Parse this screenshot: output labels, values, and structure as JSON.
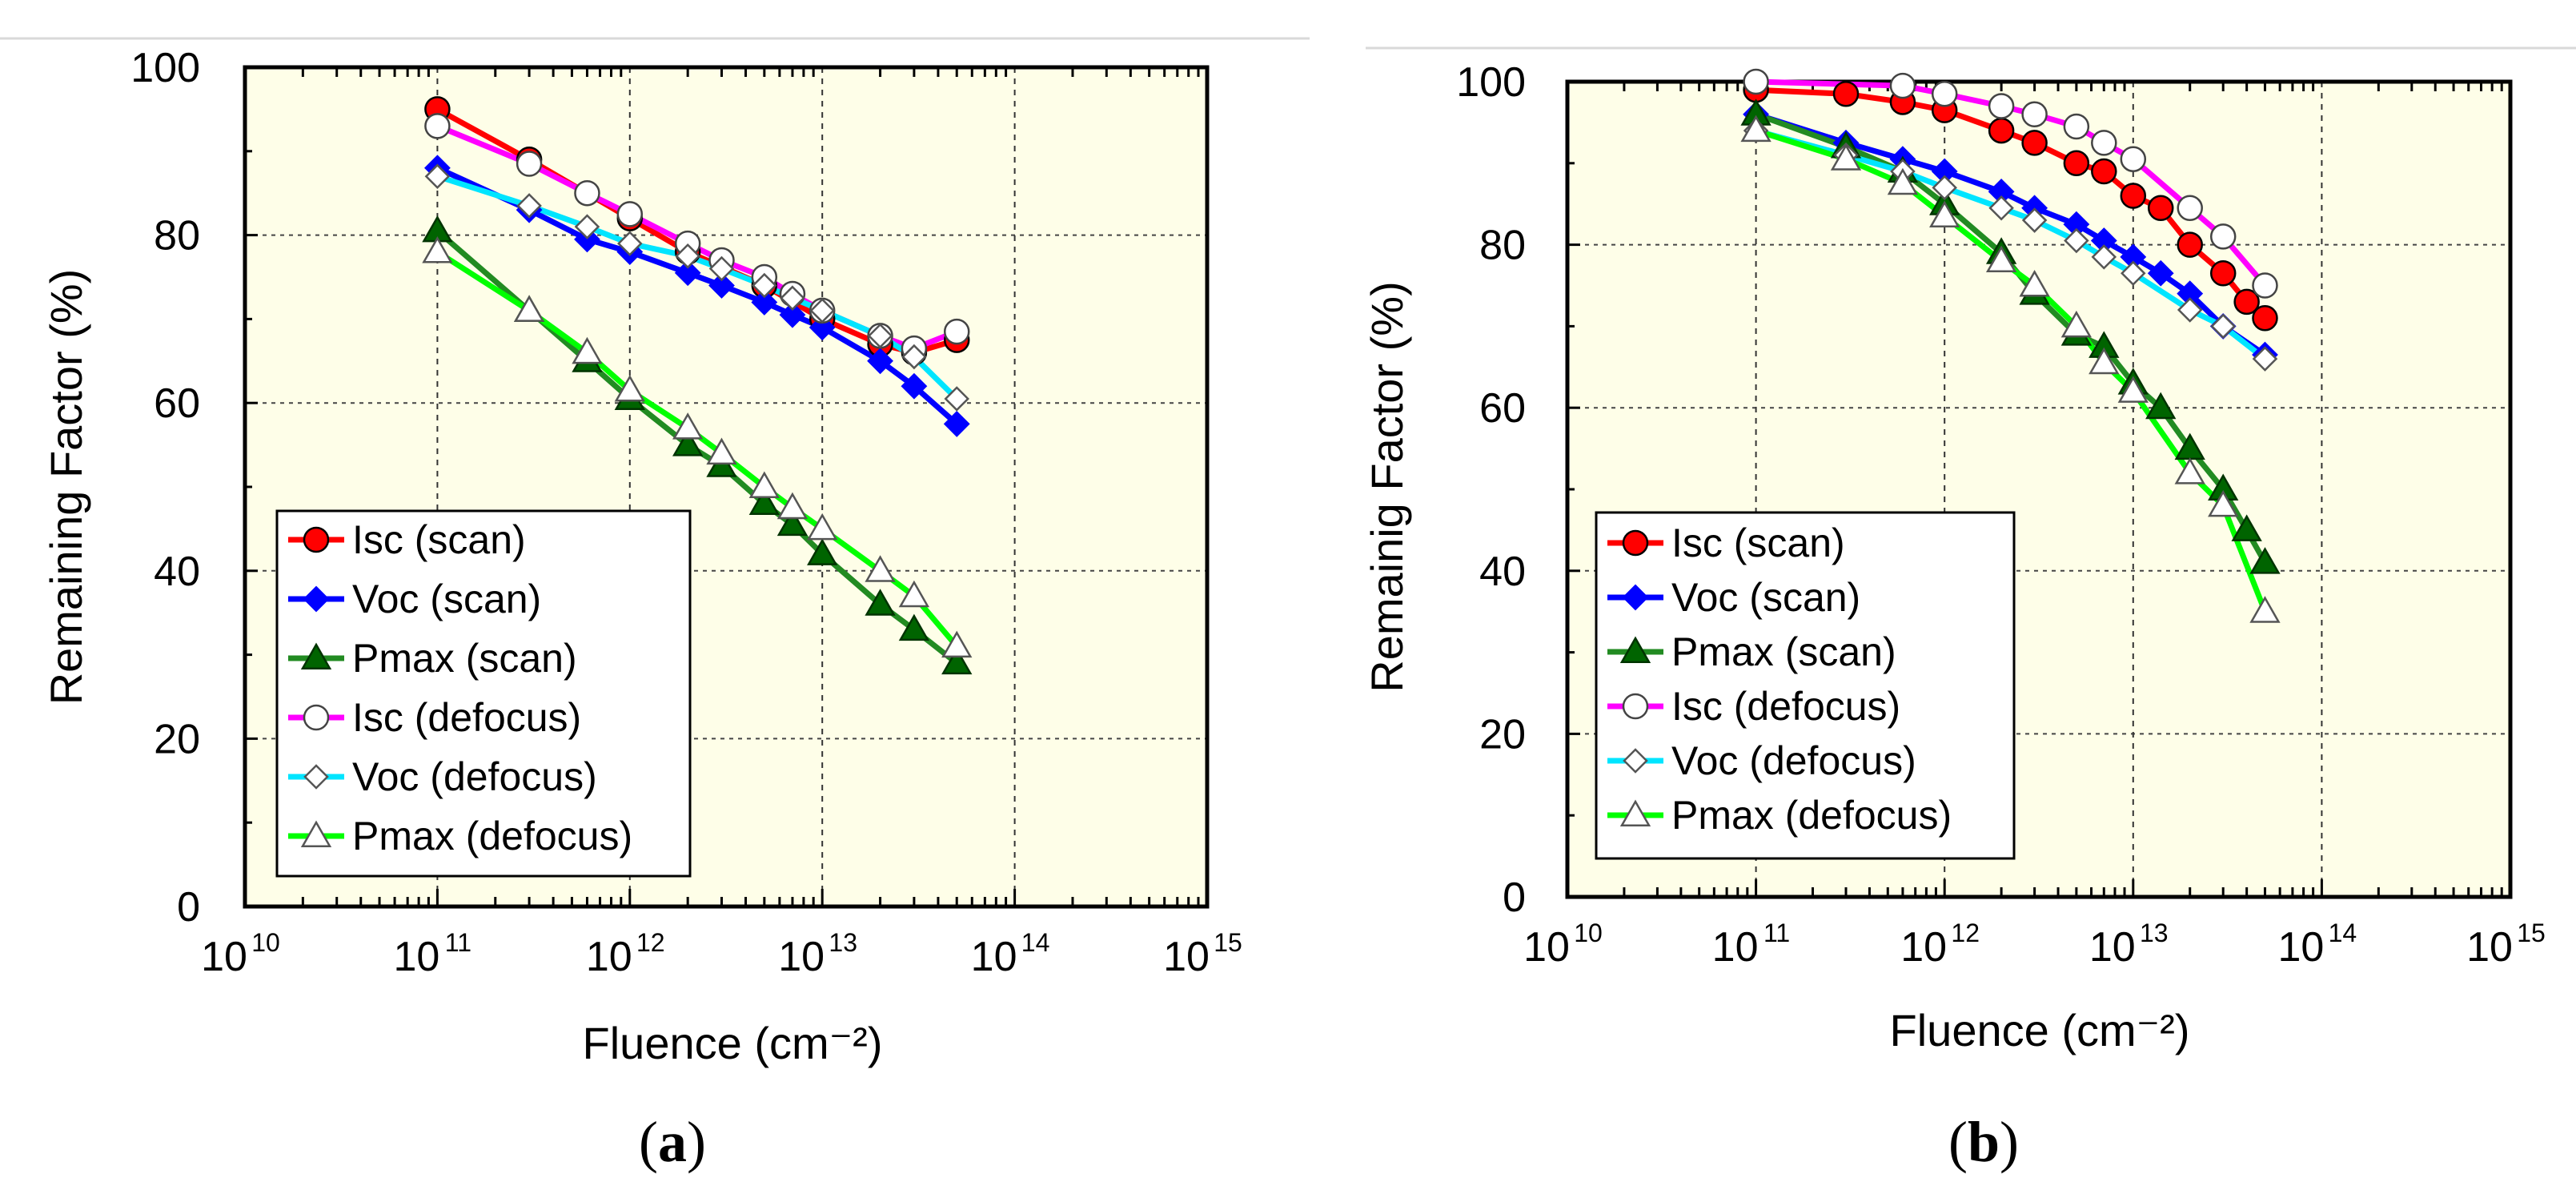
{
  "figure": {
    "panel_labels": [
      "(a)",
      "(b)"
    ]
  },
  "chart_data": [
    {
      "type": "line",
      "panel": "(a)",
      "xlabel": "Fluence (cm⁻²)",
      "ylabel": "Remaining Factor (%)",
      "xscale": "log",
      "xlim": [
        10000000000.0,
        1000000000000000.0
      ],
      "ylim": [
        0,
        100
      ],
      "x_ticks": [
        "10",
        "10",
        "10",
        "10",
        "10",
        "10"
      ],
      "x_tick_exponents": [
        "10",
        "11",
        "12",
        "13",
        "14",
        "15"
      ],
      "y_ticks": [
        "0",
        "20",
        "40",
        "60",
        "80",
        "100"
      ],
      "grid": true,
      "legend_position": "lower-left",
      "series": [
        {
          "name": "Isc (scan)",
          "color": "#ff0000",
          "marker": "circle",
          "filled": true,
          "x": [
            100000000000.0,
            300000000000.0,
            1000000000000.0,
            2000000000000.0,
            5000000000000.0,
            10000000000000.0,
            20000000000000.0,
            30000000000000.0,
            50000000000000.0
          ],
          "y": [
            95,
            89,
            82,
            78,
            74,
            70,
            67,
            66,
            67.5
          ]
        },
        {
          "name": "Voc (scan)",
          "color": "#0000ff",
          "marker": "diamond",
          "filled": true,
          "x": [
            100000000000.0,
            300000000000.0,
            600000000000.0,
            1000000000000.0,
            2000000000000.0,
            3000000000000.0,
            5000000000000.0,
            7000000000000.0,
            10000000000000.0,
            20000000000000.0,
            30000000000000.0,
            50000000000000.0
          ],
          "y": [
            88,
            83,
            79.5,
            78,
            75.5,
            74,
            72,
            70.5,
            69,
            65,
            62,
            57.5
          ]
        },
        {
          "name": "Pmax (scan)",
          "color": "#006400",
          "line_color": "#228b22",
          "marker": "triangle",
          "filled": true,
          "x": [
            100000000000.0,
            300000000000.0,
            600000000000.0,
            1000000000000.0,
            2000000000000.0,
            3000000000000.0,
            5000000000000.0,
            7000000000000.0,
            10000000000000.0,
            20000000000000.0,
            30000000000000.0,
            50000000000000.0
          ],
          "y": [
            80.5,
            71,
            65,
            60.5,
            55,
            52.5,
            48,
            45.5,
            42,
            36,
            33,
            29
          ]
        },
        {
          "name": "Isc (defocus)",
          "color": "#ff00ff",
          "marker": "circle",
          "filled": false,
          "x": [
            100000000000.0,
            300000000000.0,
            600000000000.0,
            1000000000000.0,
            2000000000000.0,
            3000000000000.0,
            5000000000000.0,
            7000000000000.0,
            10000000000000.0,
            20000000000000.0,
            30000000000000.0,
            50000000000000.0
          ],
          "y": [
            93,
            88.5,
            85,
            82.5,
            79,
            77,
            75,
            73,
            71,
            68,
            66.5,
            68.5
          ]
        },
        {
          "name": "Voc (defocus)",
          "color": "#00e5ff",
          "marker": "diamond",
          "filled": false,
          "x": [
            100000000000.0,
            300000000000.0,
            600000000000.0,
            1000000000000.0,
            2000000000000.0,
            3000000000000.0,
            5000000000000.0,
            7000000000000.0,
            10000000000000.0,
            20000000000000.0,
            30000000000000.0,
            50000000000000.0
          ],
          "y": [
            87,
            83.5,
            81,
            79,
            77.5,
            76,
            74,
            72.5,
            71,
            68,
            65.5,
            60.5
          ]
        },
        {
          "name": "Pmax (defocus)",
          "color": "#00ff00",
          "marker": "triangle",
          "filled": false,
          "x": [
            100000000000.0,
            300000000000.0,
            600000000000.0,
            1000000000000.0,
            2000000000000.0,
            3000000000000.0,
            5000000000000.0,
            7000000000000.0,
            10000000000000.0,
            20000000000000.0,
            30000000000000.0,
            50000000000000.0
          ],
          "y": [
            78,
            71,
            66,
            61.5,
            57,
            54,
            50,
            47.5,
            45,
            40,
            37,
            31
          ]
        }
      ]
    },
    {
      "type": "line",
      "panel": "(b)",
      "xlabel": "Fluence (cm⁻²)",
      "ylabel": "Remainig Factor (%)",
      "xscale": "log",
      "xlim": [
        10000000000.0,
        1000000000000000.0
      ],
      "ylim": [
        0,
        100
      ],
      "x_ticks": [
        "10",
        "10",
        "10",
        "10",
        "10",
        "10"
      ],
      "x_tick_exponents": [
        "10",
        "11",
        "12",
        "13",
        "14",
        "15"
      ],
      "y_ticks": [
        "0",
        "20",
        "40",
        "60",
        "80",
        "100"
      ],
      "grid": true,
      "legend_position": "lower-left",
      "series": [
        {
          "name": "Isc (scan)",
          "color": "#ff0000",
          "marker": "circle",
          "filled": true,
          "x": [
            100000000000.0,
            300000000000.0,
            600000000000.0,
            1000000000000.0,
            2000000000000.0,
            3000000000000.0,
            5000000000000.0,
            7000000000000.0,
            10000000000000.0,
            14000000000000.0,
            20000000000000.0,
            30000000000000.0,
            40000000000000.0,
            50000000000000.0
          ],
          "y": [
            99,
            98.5,
            97.5,
            96.5,
            94,
            92.5,
            90,
            89,
            86,
            84.5,
            80,
            76.5,
            73,
            71
          ]
        },
        {
          "name": "Voc (scan)",
          "color": "#0000ff",
          "marker": "diamond",
          "filled": true,
          "x": [
            100000000000.0,
            300000000000.0,
            600000000000.0,
            1000000000000.0,
            2000000000000.0,
            3000000000000.0,
            5000000000000.0,
            7000000000000.0,
            10000000000000.0,
            14000000000000.0,
            20000000000000.0,
            30000000000000.0,
            50000000000000.0
          ],
          "y": [
            96,
            92.5,
            90.5,
            89,
            86.5,
            84.5,
            82.5,
            80.5,
            78.5,
            76.5,
            74,
            70,
            66.5
          ]
        },
        {
          "name": "Pmax (scan)",
          "color": "#006400",
          "line_color": "#228b22",
          "marker": "triangle",
          "filled": true,
          "x": [
            100000000000.0,
            300000000000.0,
            600000000000.0,
            1000000000000.0,
            2000000000000.0,
            3000000000000.0,
            5000000000000.0,
            7000000000000.0,
            10000000000000.0,
            14000000000000.0,
            20000000000000.0,
            30000000000000.0,
            40000000000000.0,
            50000000000000.0
          ],
          "y": [
            96,
            92,
            89,
            85,
            79,
            74,
            69,
            67.5,
            63,
            60,
            55,
            50,
            45,
            41
          ]
        },
        {
          "name": "Isc (defocus)",
          "color": "#ff00ff",
          "marker": "circle",
          "filled": false,
          "x": [
            100000000000.0,
            600000000000.0,
            1000000000000.0,
            2000000000000.0,
            3000000000000.0,
            5000000000000.0,
            7000000000000.0,
            10000000000000.0,
            20000000000000.0,
            30000000000000.0,
            50000000000000.0
          ],
          "y": [
            100,
            99.5,
            98.5,
            97,
            96,
            94.5,
            92.5,
            90.5,
            84.5,
            81,
            75
          ]
        },
        {
          "name": "Voc (defocus)",
          "color": "#00e5ff",
          "marker": "diamond",
          "filled": false,
          "x": [
            100000000000.0,
            300000000000.0,
            600000000000.0,
            1000000000000.0,
            2000000000000.0,
            3000000000000.0,
            5000000000000.0,
            7000000000000.0,
            10000000000000.0,
            20000000000000.0,
            30000000000000.0,
            50000000000000.0
          ],
          "y": [
            94,
            91,
            89,
            87,
            84.5,
            83,
            80.5,
            78.5,
            76.5,
            72,
            70,
            66
          ]
        },
        {
          "name": "Pmax (defocus)",
          "color": "#00ff00",
          "marker": "triangle",
          "filled": false,
          "x": [
            100000000000.0,
            300000000000.0,
            600000000000.0,
            1000000000000.0,
            2000000000000.0,
            3000000000000.0,
            5000000000000.0,
            7000000000000.0,
            10000000000000.0,
            20000000000000.0,
            30000000000000.0,
            50000000000000.0
          ],
          "y": [
            94,
            90.5,
            87.5,
            83.5,
            78,
            75,
            70,
            65.5,
            62,
            52,
            48,
            35
          ]
        }
      ]
    }
  ]
}
